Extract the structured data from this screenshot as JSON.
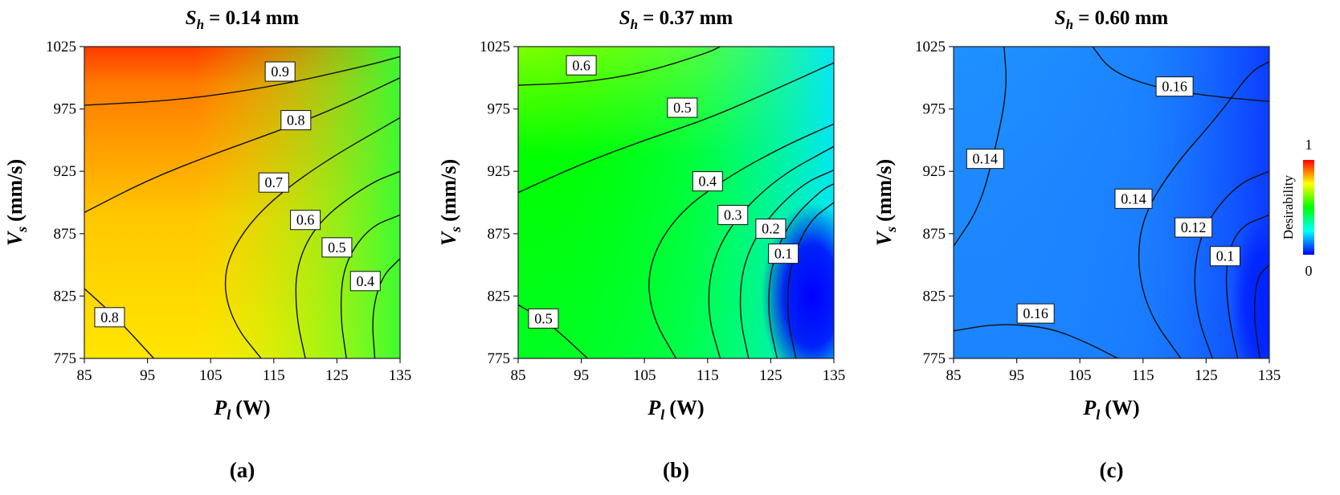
{
  "figure": {
    "colorbar": {
      "label": "Desirability",
      "max_label": "1",
      "min_label": "0"
    }
  },
  "chart_data": [
    {
      "type": "contour",
      "panel": "(a)",
      "title": {
        "var": "S",
        "sub": "h",
        "value": "= 0.14 mm"
      },
      "xlabel": {
        "var": "P",
        "sub": "l",
        "unit": "(W)"
      },
      "ylabel": {
        "var": "V",
        "sub": "s",
        "unit": "(mm/s)"
      },
      "xlim": [
        85,
        135
      ],
      "ylim": [
        775,
        1025
      ],
      "xticks": [
        "85",
        "95",
        "105",
        "115",
        "125",
        "135"
      ],
      "yticks": [
        "775",
        "825",
        "875",
        "925",
        "975",
        "1025"
      ],
      "color_range": [
        0,
        1
      ],
      "contour_labels": [
        {
          "text": "0.9",
          "x": 116,
          "y": 1005
        },
        {
          "text": "0.8",
          "x": 118.5,
          "y": 966
        },
        {
          "text": "0.7",
          "x": 115,
          "y": 916
        },
        {
          "text": "0.6",
          "x": 120,
          "y": 886
        },
        {
          "text": "0.5",
          "x": 125,
          "y": 864
        },
        {
          "text": "0.4",
          "x": 129.5,
          "y": 837
        },
        {
          "text": "0.8",
          "x": 89,
          "y": 808
        }
      ],
      "contour_lines": [
        [
          [
            85,
            978
          ],
          [
            100,
            982
          ],
          [
            115,
            993
          ],
          [
            130,
            1010
          ],
          [
            135,
            1017
          ]
        ],
        [
          [
            85,
            892
          ],
          [
            95,
            918
          ],
          [
            105,
            938
          ],
          [
            115,
            956
          ],
          [
            125,
            976
          ],
          [
            135,
            1000
          ]
        ],
        [
          [
            113,
            775
          ],
          [
            109,
            800
          ],
          [
            107,
            830
          ],
          [
            108,
            860
          ],
          [
            113,
            895
          ],
          [
            122,
            930
          ],
          [
            135,
            968
          ]
        ],
        [
          [
            120,
            775
          ],
          [
            118.5,
            810
          ],
          [
            118.5,
            850
          ],
          [
            122,
            885
          ],
          [
            130,
            915
          ],
          [
            135,
            925
          ]
        ],
        [
          [
            126.5,
            775
          ],
          [
            125.5,
            810
          ],
          [
            126,
            850
          ],
          [
            130,
            880
          ],
          [
            135,
            890
          ]
        ],
        [
          [
            131,
            775
          ],
          [
            130.5,
            810
          ],
          [
            132,
            840
          ],
          [
            135,
            855
          ]
        ],
        [
          [
            85,
            831
          ],
          [
            90,
            808
          ],
          [
            96,
            775
          ]
        ]
      ]
    },
    {
      "type": "contour",
      "panel": "(b)",
      "title": {
        "var": "S",
        "sub": "h",
        "value": "= 0.37 mm"
      },
      "xlabel": {
        "var": "P",
        "sub": "l",
        "unit": "(W)"
      },
      "ylabel": {
        "var": "V",
        "sub": "s",
        "unit": "(mm/s)"
      },
      "xlim": [
        85,
        135
      ],
      "ylim": [
        775,
        1025
      ],
      "xticks": [
        "85",
        "95",
        "105",
        "115",
        "125",
        "135"
      ],
      "yticks": [
        "775",
        "825",
        "875",
        "925",
        "975",
        "1025"
      ],
      "color_range": [
        0,
        1
      ],
      "contour_labels": [
        {
          "text": "0.6",
          "x": 95,
          "y": 1010
        },
        {
          "text": "0.5",
          "x": 111,
          "y": 976
        },
        {
          "text": "0.4",
          "x": 115,
          "y": 917
        },
        {
          "text": "0.3",
          "x": 119,
          "y": 890
        },
        {
          "text": "0.2",
          "x": 125,
          "y": 879
        },
        {
          "text": "0.1",
          "x": 127,
          "y": 859
        },
        {
          "text": "0.5",
          "x": 89,
          "y": 807
        }
      ],
      "contour_lines": [
        [
          [
            85,
            994
          ],
          [
            95,
            996
          ],
          [
            105,
            1004
          ],
          [
            115,
            1020
          ],
          [
            117,
            1025
          ]
        ],
        [
          [
            85,
            908
          ],
          [
            95,
            931
          ],
          [
            105,
            950
          ],
          [
            115,
            967
          ],
          [
            125,
            989
          ],
          [
            135,
            1012
          ]
        ],
        [
          [
            110,
            775
          ],
          [
            106,
            810
          ],
          [
            105.5,
            850
          ],
          [
            110,
            890
          ],
          [
            118,
            920
          ],
          [
            127,
            945
          ],
          [
            135,
            963
          ]
        ],
        [
          [
            117,
            775
          ],
          [
            115,
            810
          ],
          [
            115.5,
            850
          ],
          [
            119,
            885
          ],
          [
            126,
            920
          ],
          [
            135,
            945
          ]
        ],
        [
          [
            121.5,
            775
          ],
          [
            120,
            810
          ],
          [
            120.5,
            850
          ],
          [
            124,
            885
          ],
          [
            130,
            915
          ],
          [
            135,
            926
          ]
        ],
        [
          [
            126,
            775
          ],
          [
            124.5,
            810
          ],
          [
            125,
            850
          ],
          [
            128,
            885
          ],
          [
            133,
            910
          ],
          [
            135,
            915
          ]
        ],
        [
          [
            129,
            775
          ],
          [
            127.5,
            810
          ],
          [
            128,
            850
          ],
          [
            131,
            885
          ],
          [
            135,
            900
          ]
        ],
        [
          [
            85,
            818
          ],
          [
            90,
            803
          ],
          [
            96,
            775
          ]
        ]
      ]
    },
    {
      "type": "contour",
      "panel": "(c)",
      "title": {
        "var": "S",
        "sub": "h",
        "value": "= 0.60 mm"
      },
      "xlabel": {
        "var": "P",
        "sub": "l",
        "unit": "(W)"
      },
      "ylabel": {
        "var": "V",
        "sub": "s",
        "unit": "(mm/s)"
      },
      "xlim": [
        85,
        135
      ],
      "ylim": [
        775,
        1025
      ],
      "xticks": [
        "85",
        "95",
        "105",
        "115",
        "125",
        "135"
      ],
      "yticks": [
        "775",
        "825",
        "875",
        "925",
        "975",
        "1025"
      ],
      "color_range": [
        0,
        1
      ],
      "contour_labels": [
        {
          "text": "0.16",
          "x": 120,
          "y": 993
        },
        {
          "text": "0.14",
          "x": 90,
          "y": 935
        },
        {
          "text": "0.14",
          "x": 113.5,
          "y": 903
        },
        {
          "text": "0.12",
          "x": 123,
          "y": 880
        },
        {
          "text": "0.1",
          "x": 128,
          "y": 857
        },
        {
          "text": "0.16",
          "x": 98,
          "y": 811
        }
      ],
      "contour_lines": [
        [
          [
            93,
            1025
          ],
          [
            93.5,
            990
          ],
          [
            91.5,
            940
          ],
          [
            89,
            895
          ],
          [
            85,
            865
          ]
        ],
        [
          [
            107,
            1025
          ],
          [
            110,
            1005
          ],
          [
            117,
            992
          ],
          [
            126,
            985
          ],
          [
            135,
            981
          ]
        ],
        [
          [
            121,
            775
          ],
          [
            116,
            810
          ],
          [
            114,
            850
          ],
          [
            115,
            890
          ],
          [
            120,
            930
          ],
          [
            127,
            970
          ],
          [
            132,
            1005
          ],
          [
            135,
            1013
          ]
        ],
        [
          [
            126,
            775
          ],
          [
            123.5,
            810
          ],
          [
            123,
            850
          ],
          [
            125,
            885
          ],
          [
            130,
            915
          ],
          [
            135,
            925
          ]
        ],
        [
          [
            130,
            775
          ],
          [
            128.5,
            810
          ],
          [
            128,
            850
          ],
          [
            130,
            880
          ],
          [
            135,
            890
          ]
        ],
        [
          [
            133.5,
            775
          ],
          [
            132.5,
            810
          ],
          [
            133,
            840
          ],
          [
            135,
            850
          ]
        ],
        [
          [
            85,
            797
          ],
          [
            92,
            803
          ],
          [
            100,
            800
          ],
          [
            106,
            788
          ],
          [
            111,
            775
          ]
        ]
      ]
    }
  ]
}
